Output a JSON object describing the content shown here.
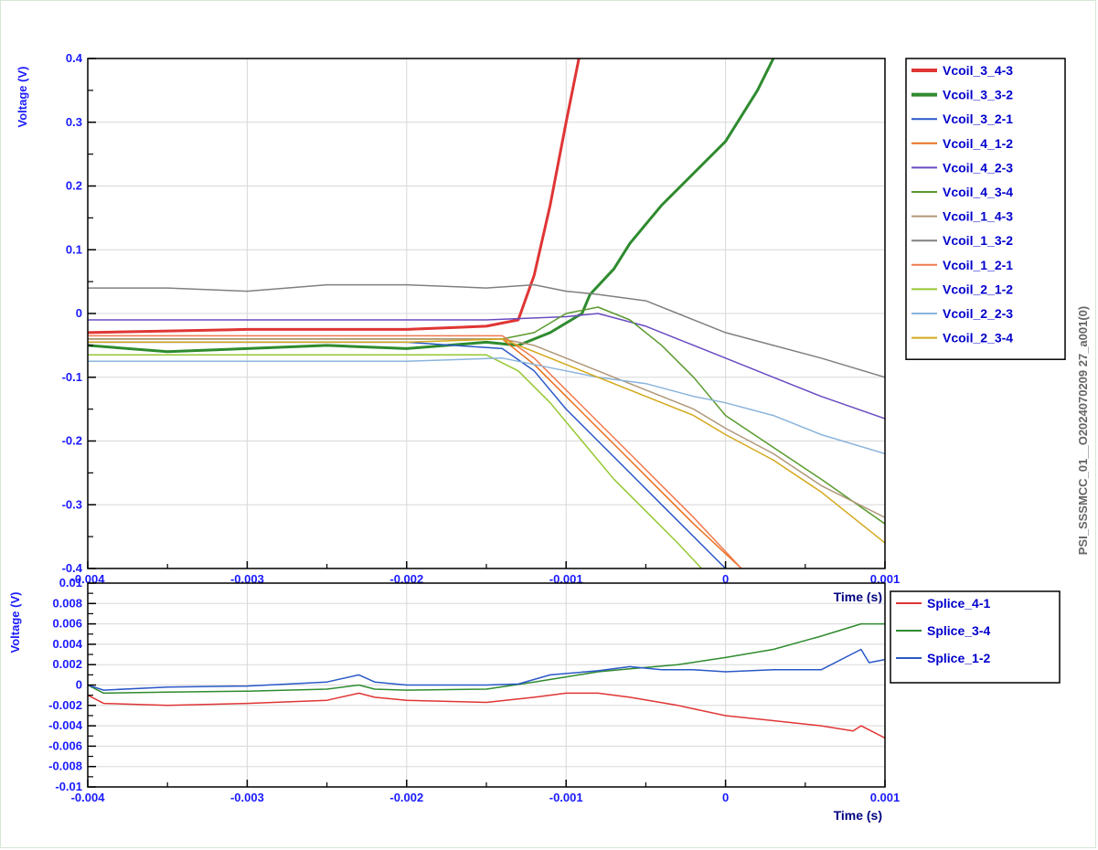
{
  "side_label": "PSI_SSSMCC_01__O2024070209 27_a001(0)",
  "chart_data": [
    {
      "type": "line",
      "ylabel": "Voltage (V)",
      "xlabel": "Time (s)",
      "xlim": [
        -0.004,
        0.001
      ],
      "ylim": [
        -0.4,
        0.4
      ],
      "x_ticks": [
        -0.004,
        -0.003,
        -0.002,
        -0.001,
        0,
        0.001
      ],
      "x_tick_labels": [
        "-0.004",
        "-0.003",
        "-0.002",
        "-0.001",
        "0",
        "0.001"
      ],
      "y_ticks": [
        0.4,
        0.3,
        0.2,
        0.1,
        0,
        -0.1,
        -0.2,
        -0.3,
        -0.4
      ],
      "y_tick_labels": [
        "0.4",
        "0.3",
        "0.2",
        "0.1",
        "0",
        "-0.1",
        "-0.2",
        "-0.3",
        "-0.4"
      ],
      "grid": true,
      "legend_position": "right",
      "series": [
        {
          "name": "Vcoil_3_4-3",
          "color": "#e03535",
          "width": 3,
          "x": [
            -0.004,
            -0.003,
            -0.002,
            -0.0015,
            -0.0013,
            -0.0012,
            -0.0011,
            -0.001,
            -0.00092
          ],
          "y": [
            -0.03,
            -0.025,
            -0.025,
            -0.02,
            -0.01,
            0.06,
            0.17,
            0.3,
            0.4
          ]
        },
        {
          "name": "Vcoil_3_3-2",
          "color": "#2e8b2e",
          "width": 3,
          "x": [
            -0.004,
            -0.0035,
            -0.003,
            -0.0025,
            -0.002,
            -0.0015,
            -0.0013,
            -0.0011,
            -0.0009,
            -0.00085,
            -0.0007,
            -0.0006,
            -0.0004,
            -0.0002,
            0,
            0.0002,
            0.0003
          ],
          "y": [
            -0.05,
            -0.06,
            -0.055,
            -0.05,
            -0.055,
            -0.045,
            -0.05,
            -0.03,
            0.0,
            0.03,
            0.07,
            0.11,
            0.17,
            0.22,
            0.27,
            0.35,
            0.4
          ]
        },
        {
          "name": "Vcoil_3_2-1",
          "color": "#2a58c8",
          "width": 1.5,
          "x": [
            -0.004,
            -0.003,
            -0.002,
            -0.0014,
            -0.0012,
            -0.001,
            -0.0008,
            -0.0006,
            -0.0004,
            -0.0002,
            0
          ],
          "y": [
            -0.045,
            -0.045,
            -0.045,
            -0.055,
            -0.09,
            -0.15,
            -0.2,
            -0.25,
            -0.3,
            -0.35,
            -0.4
          ]
        },
        {
          "name": "Vcoil_4_1-2",
          "color": "#e8701e",
          "width": 1.5,
          "x": [
            -0.004,
            -0.003,
            -0.002,
            -0.0014,
            -0.0012,
            -0.001,
            -0.0008,
            -0.0006,
            -0.0004,
            -0.0002,
            0.0001
          ],
          "y": [
            -0.04,
            -0.04,
            -0.04,
            -0.04,
            -0.08,
            -0.13,
            -0.18,
            -0.23,
            -0.28,
            -0.33,
            -0.4
          ]
        },
        {
          "name": "Vcoil_4_2-3",
          "color": "#6a4cc0",
          "width": 1.5,
          "x": [
            -0.004,
            -0.003,
            -0.002,
            -0.0015,
            -0.001,
            -0.0008,
            -0.0005,
            -0.0003,
            0,
            0.0003,
            0.0006,
            0.001
          ],
          "y": [
            -0.01,
            -0.01,
            -0.01,
            -0.01,
            -0.005,
            0.0,
            -0.02,
            -0.04,
            -0.07,
            -0.1,
            -0.13,
            -0.165
          ]
        },
        {
          "name": "Vcoil_4_3-4",
          "color": "#5a9a2e",
          "width": 1.5,
          "x": [
            -0.004,
            -0.003,
            -0.002,
            -0.0014,
            -0.0012,
            -0.001,
            -0.0008,
            -0.0006,
            -0.0004,
            -0.0002,
            0,
            0.0003,
            0.0006,
            0.001
          ],
          "y": [
            -0.04,
            -0.04,
            -0.04,
            -0.04,
            -0.03,
            0.0,
            0.01,
            -0.01,
            -0.05,
            -0.1,
            -0.16,
            -0.21,
            -0.26,
            -0.33
          ]
        },
        {
          "name": "Vcoil_1_4-3",
          "color": "#b0977a",
          "width": 1.5,
          "x": [
            -0.004,
            -0.003,
            -0.002,
            -0.0014,
            -0.0012,
            -0.001,
            -0.0008,
            -0.0005,
            -0.0002,
            0,
            0.0003,
            0.0006,
            0.001
          ],
          "y": [
            -0.04,
            -0.04,
            -0.04,
            -0.04,
            -0.05,
            -0.07,
            -0.09,
            -0.12,
            -0.15,
            -0.18,
            -0.22,
            -0.27,
            -0.32
          ]
        },
        {
          "name": "Vcoil_1_3-2",
          "color": "#808080",
          "width": 1.5,
          "x": [
            -0.004,
            -0.0035,
            -0.003,
            -0.0025,
            -0.002,
            -0.0015,
            -0.0012,
            -0.001,
            -0.0008,
            -0.0005,
            -0.0003,
            0,
            0.0003,
            0.0006,
            0.001
          ],
          "y": [
            0.04,
            0.04,
            0.035,
            0.045,
            0.045,
            0.04,
            0.045,
            0.035,
            0.03,
            0.02,
            0.0,
            -0.03,
            -0.05,
            -0.07,
            -0.1
          ]
        },
        {
          "name": "Vcoil_1_2-1",
          "color": "#f07a50",
          "width": 1.5,
          "x": [
            -0.004,
            -0.003,
            -0.002,
            -0.0014,
            -0.0012,
            -0.001,
            -0.0008,
            -0.0006,
            -0.0004,
            -0.0002,
            0.0001
          ],
          "y": [
            -0.035,
            -0.035,
            -0.035,
            -0.035,
            -0.07,
            -0.12,
            -0.17,
            -0.22,
            -0.27,
            -0.32,
            -0.4
          ]
        },
        {
          "name": "Vcoil_2_1-2",
          "color": "#96c832",
          "width": 1.5,
          "x": [
            -0.004,
            -0.003,
            -0.002,
            -0.0015,
            -0.0013,
            -0.0011,
            -0.0009,
            -0.0007,
            -0.0005,
            -0.0003,
            -0.00015
          ],
          "y": [
            -0.065,
            -0.065,
            -0.065,
            -0.065,
            -0.09,
            -0.14,
            -0.2,
            -0.26,
            -0.31,
            -0.36,
            -0.4
          ]
        },
        {
          "name": "Vcoil_2_2-3",
          "color": "#8ab4dc",
          "width": 1.5,
          "x": [
            -0.004,
            -0.003,
            -0.002,
            -0.0014,
            -0.0012,
            -0.001,
            -0.0008,
            -0.0005,
            -0.0002,
            0,
            0.0003,
            0.0006,
            0.001
          ],
          "y": [
            -0.075,
            -0.075,
            -0.075,
            -0.07,
            -0.08,
            -0.09,
            -0.1,
            -0.11,
            -0.13,
            -0.14,
            -0.16,
            -0.19,
            -0.22
          ]
        },
        {
          "name": "Vcoil_2_3-4",
          "color": "#d4a81a",
          "width": 1.5,
          "x": [
            -0.004,
            -0.003,
            -0.002,
            -0.0014,
            -0.0012,
            -0.001,
            -0.0008,
            -0.0005,
            -0.0002,
            0,
            0.0003,
            0.0006,
            0.001
          ],
          "y": [
            -0.045,
            -0.045,
            -0.045,
            -0.04,
            -0.06,
            -0.08,
            -0.1,
            -0.13,
            -0.16,
            -0.19,
            -0.23,
            -0.28,
            -0.36
          ]
        }
      ]
    },
    {
      "type": "line",
      "ylabel": "Voltage (V)",
      "xlabel": "Time (s)",
      "xlim": [
        -0.004,
        0.001
      ],
      "ylim": [
        -0.01,
        0.01
      ],
      "x_ticks": [
        -0.004,
        -0.003,
        -0.002,
        -0.001,
        0,
        0.001
      ],
      "x_tick_labels": [
        "-0.004",
        "-0.003",
        "-0.002",
        "-0.001",
        "0",
        "0.001"
      ],
      "y_ticks": [
        0.01,
        0.008,
        0.006,
        0.004,
        0.002,
        0,
        -0.002,
        -0.004,
        -0.006,
        -0.008,
        -0.01
      ],
      "y_tick_labels": [
        "0.01",
        "0.008",
        "0.006",
        "0.004",
        "0.002",
        "0",
        "-0.002",
        "-0.004",
        "-0.006",
        "-0.008",
        "-0.01"
      ],
      "grid": true,
      "legend_position": "right",
      "series": [
        {
          "name": "Splice_4-1",
          "color": "#e03535",
          "width": 1.5,
          "x": [
            -0.004,
            -0.0039,
            -0.0035,
            -0.003,
            -0.0025,
            -0.0023,
            -0.0022,
            -0.002,
            -0.0015,
            -0.0012,
            -0.001,
            -0.0008,
            -0.0006,
            -0.0003,
            0,
            0.0003,
            0.0006,
            0.0008,
            0.00085,
            0.001
          ],
          "y": [
            -0.001,
            -0.0018,
            -0.002,
            -0.0018,
            -0.0015,
            -0.0008,
            -0.0012,
            -0.0015,
            -0.0017,
            -0.0012,
            -0.0008,
            -0.0008,
            -0.0012,
            -0.002,
            -0.003,
            -0.0035,
            -0.004,
            -0.0045,
            -0.004,
            -0.0052
          ]
        },
        {
          "name": "Splice_3-4",
          "color": "#2e8b2e",
          "width": 1.5,
          "x": [
            -0.004,
            -0.0039,
            -0.0035,
            -0.003,
            -0.0025,
            -0.0023,
            -0.0022,
            -0.002,
            -0.0015,
            -0.0012,
            -0.001,
            -0.0008,
            -0.0006,
            -0.0003,
            0,
            0.0003,
            0.0006,
            0.00085,
            0.001
          ],
          "y": [
            0.0,
            -0.0008,
            -0.0007,
            -0.0006,
            -0.0004,
            0.0,
            -0.0004,
            -0.0005,
            -0.0004,
            0.0003,
            0.0008,
            0.0013,
            0.0016,
            0.002,
            0.0027,
            0.0035,
            0.0048,
            0.006,
            0.006
          ]
        },
        {
          "name": "Splice_1-2",
          "color": "#2a58c8",
          "width": 1.5,
          "x": [
            -0.004,
            -0.0039,
            -0.0035,
            -0.003,
            -0.0025,
            -0.0023,
            -0.0022,
            -0.002,
            -0.0015,
            -0.0013,
            -0.0011,
            -0.0008,
            -0.0006,
            -0.0004,
            -0.0002,
            0,
            0.0003,
            0.0006,
            0.00085,
            0.0009,
            0.001
          ],
          "y": [
            0.0,
            -0.0005,
            -0.0002,
            -0.0001,
            0.0003,
            0.001,
            0.0003,
            0.0,
            0.0,
            0.0001,
            0.001,
            0.0014,
            0.0018,
            0.0015,
            0.0015,
            0.0013,
            0.0015,
            0.0015,
            0.0035,
            0.0022,
            0.0025
          ]
        }
      ]
    }
  ]
}
